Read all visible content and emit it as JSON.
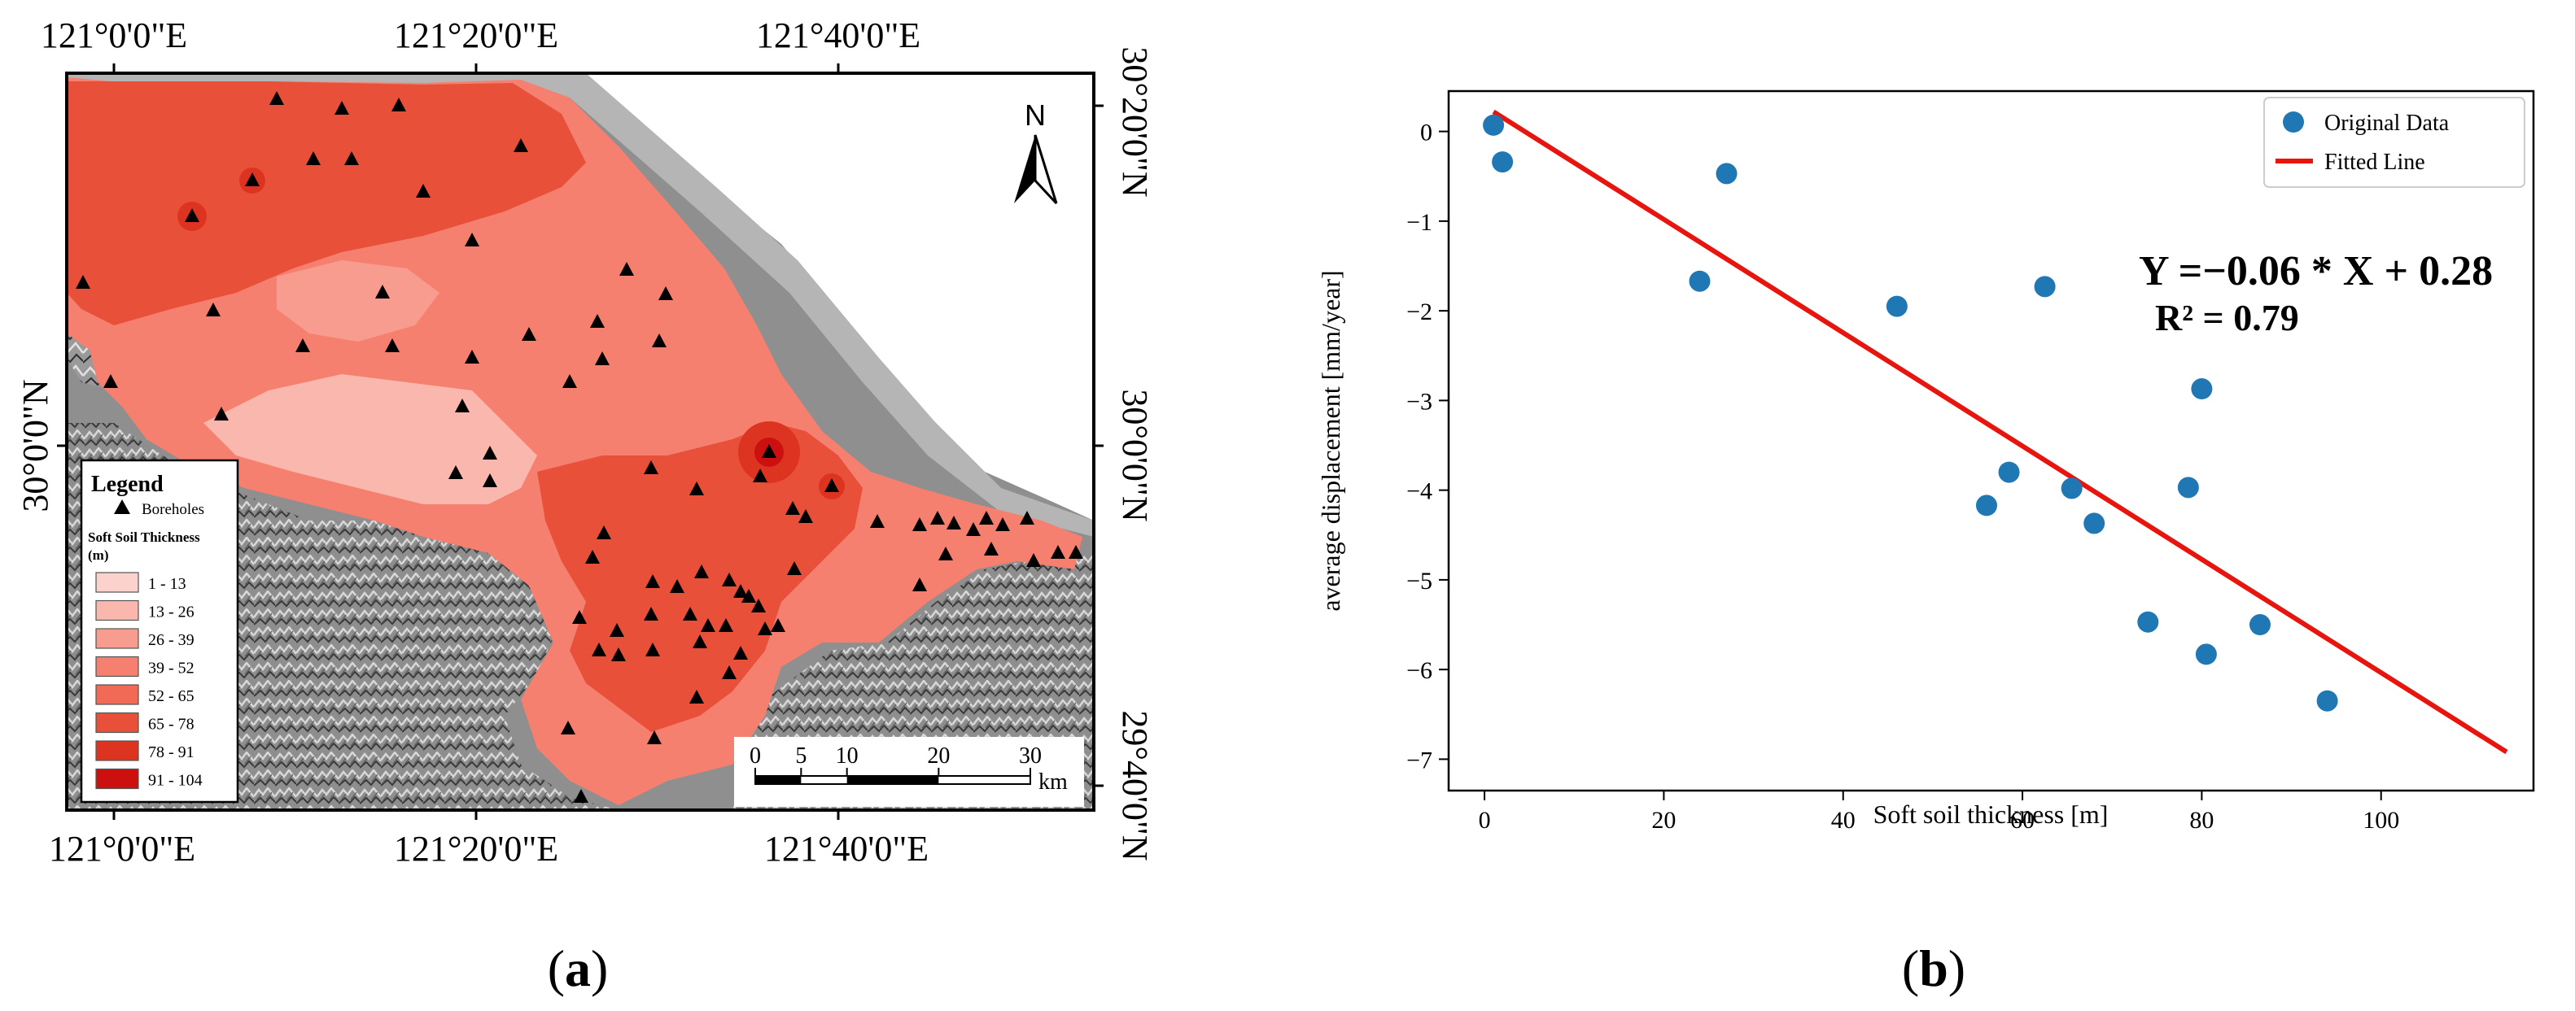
{
  "panel_a": {
    "label_open": "(",
    "label_letter": "a",
    "label_close": ")",
    "top_lon_labels": [
      "121°0'0\"E",
      "121°20'0\"E",
      "121°40'0\"E"
    ],
    "bottom_lon_labels": [
      "121°0'0\"E",
      "121°20'0\"E",
      "121°40'0\"E"
    ],
    "right_lat_labels": [
      "30°20'0\"N",
      "30°0'0\"N",
      "29°40'0\"N"
    ],
    "left_lat_labels": [
      "30°0'0\"N"
    ],
    "north_arrow": "N",
    "legend": {
      "title": "Legend",
      "boreholes_label": "Boreholes",
      "thickness_title_line1": "Soft Soil Thickness",
      "thickness_title_line2": "(m)",
      "classes": [
        {
          "label": "1  -  13",
          "color": "#fcd2cc"
        },
        {
          "label": "13  -  26",
          "color": "#fab7ad"
        },
        {
          "label": "26  -  39",
          "color": "#f89c8f"
        },
        {
          "label": "39  -  52",
          "color": "#f6806f"
        },
        {
          "label": "52  -  65",
          "color": "#f06a55"
        },
        {
          "label": "65  -  78",
          "color": "#e8503a"
        },
        {
          "label": "78  -  91",
          "color": "#dd3422"
        },
        {
          "label": "91  -  104",
          "color": "#cc1010"
        }
      ]
    },
    "scale_bar": {
      "ticks": [
        "0",
        "5",
        "10",
        "20",
        "30"
      ],
      "unit": "km"
    }
  },
  "panel_b": {
    "label_open": "(",
    "label_letter": "b",
    "label_close": ")",
    "equation": "Y =−0.06 * X + 0.28",
    "r_squared": "R² = 0.79"
  },
  "chart_data": {
    "type": "scatter",
    "title": "",
    "xlabel": "Soft soil thickness [m]",
    "ylabel": "average displacement [mm/year]",
    "xlim": [
      -4,
      117
    ],
    "ylim": [
      -7.35,
      0.45
    ],
    "xticks": [
      0,
      20,
      40,
      60,
      80,
      100
    ],
    "yticks": [
      0,
      -1,
      -2,
      -3,
      -4,
      -5,
      -6,
      -7
    ],
    "xtick_labels": [
      "0",
      "20",
      "40",
      "60",
      "80",
      "100"
    ],
    "ytick_labels": [
      "0",
      "−1",
      "−2",
      "−3",
      "−4",
      "−5",
      "−6",
      "−7"
    ],
    "legend_position": "top-right",
    "series": [
      {
        "name": "Original Data",
        "kind": "scatter",
        "color": "#1f77b4",
        "x": [
          1,
          2,
          24,
          27,
          46,
          56,
          58.5,
          62.5,
          65.5,
          68,
          74,
          78.5,
          80,
          80.5,
          86.5,
          94
        ],
        "y": [
          0.07,
          -0.34,
          -1.67,
          -0.47,
          -1.95,
          -4.17,
          -3.8,
          -1.73,
          -3.98,
          -4.37,
          -5.47,
          -3.97,
          -2.87,
          -5.83,
          -5.5,
          -6.35
        ]
      },
      {
        "name": "Fitted Line",
        "kind": "line",
        "color": "#e8150f",
        "x": [
          1,
          114
        ],
        "y": [
          0.22,
          -6.92
        ]
      }
    ]
  }
}
